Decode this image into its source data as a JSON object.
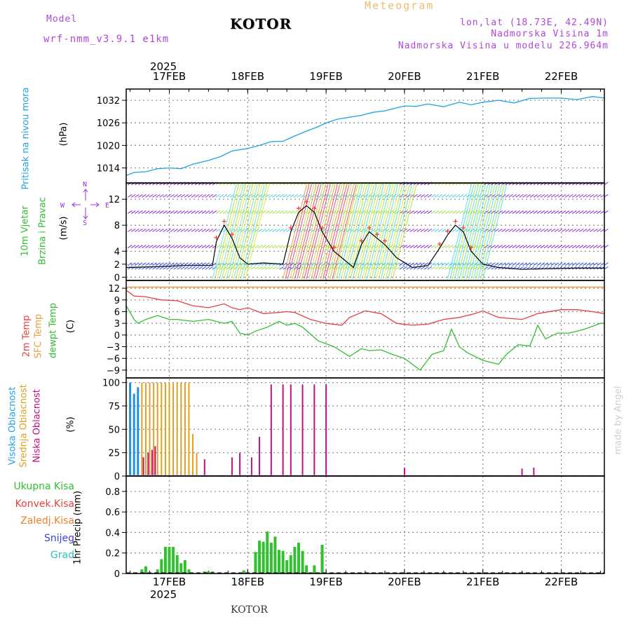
{
  "header": {
    "model_label": "Model",
    "model_value": "wrf-nmm_v3.9.1  e1km",
    "title": "KOTOR",
    "meteogram_label": "Meteogram",
    "coords": "lon,lat (18.73E, 42.49N)",
    "altitude": "Nadmorska Visina 1m",
    "model_altitude": "Nadmorska Visina u modelu 226.964m",
    "watermark": "made by Angel",
    "footer": "KOTOR"
  },
  "time_axis": {
    "year_top": "2025",
    "year_bottom": "2025",
    "day_labels": [
      "17FEB",
      "18FEB",
      "19FEB",
      "20FEB",
      "21FEB",
      "22FEB"
    ],
    "range_days": [
      -0.55,
      5.55
    ]
  },
  "colors": {
    "pressure": "#1ea3e6",
    "temp2m": "#e84040",
    "sfc_temp": "#e8a040",
    "dewpt": "#30c030",
    "high_cloud": "#2090e0",
    "mid_cloud": "#e0a020",
    "low_cloud": "#c01080",
    "precip": "#30c030",
    "wind_speed": "#000000",
    "gust": "#ff3030",
    "purple": "#a030e0"
  },
  "panels": {
    "pressure": {
      "label_a": "Pritisak na nivou mora",
      "label_b": "(hPa)",
      "ticks": [
        1014,
        1020,
        1026,
        1032
      ]
    },
    "wind": {
      "label_a": "10m Vjetar",
      "label_b": "Brzina i Pravac",
      "label_c": "(m/s)",
      "compass_n": "N",
      "compass_s": "S",
      "compass_w": "W",
      "compass_e": "E",
      "ticks": [
        0,
        2,
        4,
        8,
        12
      ]
    },
    "temp": {
      "label_a": "2m Temp",
      "label_b": "SFC Temp",
      "label_c": "dewpt Temp",
      "label_d": "(C)",
      "ticks": [
        -9,
        -6,
        -3,
        0,
        3,
        6,
        9,
        12
      ]
    },
    "cloud": {
      "label_a": "Visoka Oblacnost",
      "label_b": "Srednja Oblacnost",
      "label_c": "Niska Oblacnost",
      "label_d": "(%)",
      "ticks": [
        0,
        25,
        50,
        75,
        100
      ]
    },
    "precip": {
      "label_b": "1hr Precip (mm)",
      "ticks": [
        0,
        0.2,
        0.4,
        0.6,
        0.8
      ],
      "legend": [
        {
          "text": "Ukupna Kisa",
          "color": "#30c030"
        },
        {
          "text": "Konvek.Kisa",
          "color": "#e84040"
        },
        {
          "text": "Zaledj.Kisa",
          "color": "#f08030"
        },
        {
          "text": "Snijeg",
          "color": "#4040e0"
        },
        {
          "text": "Grad",
          "color": "#30c0c0"
        }
      ]
    }
  },
  "chart_data": [
    {
      "type": "line",
      "name": "pressure",
      "ylim": [
        1010,
        1035
      ],
      "x": [
        -0.55,
        -0.45,
        -0.3,
        -0.15,
        0.0,
        0.15,
        0.3,
        0.4,
        0.5,
        0.65,
        0.8,
        1.0,
        1.15,
        1.3,
        1.45,
        1.6,
        1.75,
        1.9,
        2.0,
        2.15,
        2.3,
        2.45,
        2.6,
        2.75,
        2.9,
        3.0,
        3.15,
        3.3,
        3.5,
        3.7,
        3.85,
        4.0,
        4.2,
        4.4,
        4.6,
        4.8,
        5.0,
        5.2,
        5.4,
        5.55
      ],
      "y": [
        1012,
        1012.8,
        1013.0,
        1013.8,
        1014.0,
        1013.8,
        1015,
        1015.5,
        1016,
        1017,
        1018.5,
        1019.2,
        1020,
        1021.0,
        1021.1,
        1022.5,
        1023.8,
        1025,
        1026,
        1027,
        1027.5,
        1028,
        1028.8,
        1029.2,
        1030,
        1030.5,
        1030.4,
        1031.0,
        1030.3,
        1031.5,
        1030.8,
        1031.5,
        1032,
        1031.3,
        1032.5,
        1032.6,
        1032.6,
        1032.2,
        1033.0,
        1032.6
      ]
    },
    {
      "type": "line",
      "name": "wind_speed",
      "ylim": [
        -0.5,
        14.5
      ],
      "x": [
        -0.55,
        -0.2,
        0.2,
        0.55,
        0.6,
        0.7,
        0.8,
        0.9,
        1.0,
        1.2,
        1.45,
        1.55,
        1.65,
        1.75,
        1.85,
        1.95,
        2.1,
        2.35,
        2.45,
        2.55,
        2.65,
        2.75,
        2.9,
        3.1,
        3.3,
        3.45,
        3.55,
        3.65,
        3.75,
        3.85,
        4.0,
        4.2,
        4.5,
        4.8,
        5.2,
        5.55
      ],
      "y": [
        1.5,
        1.6,
        1.8,
        1.8,
        5.5,
        8,
        6,
        3,
        2,
        2.2,
        2,
        7,
        10,
        11,
        10,
        7,
        4,
        1.5,
        5,
        7,
        6,
        5,
        3,
        1.5,
        1.8,
        4.5,
        6.5,
        8,
        7,
        4,
        2,
        1.5,
        1.2,
        1.3,
        1.4,
        1.4
      ]
    },
    {
      "type": "line",
      "name": "2m_temp",
      "ylim": [
        -11,
        14
      ],
      "x": [
        -0.55,
        -0.45,
        -0.3,
        -0.1,
        0.1,
        0.3,
        0.5,
        0.7,
        0.8,
        0.9,
        1.0,
        1.2,
        1.4,
        1.5,
        1.6,
        1.8,
        2.0,
        2.2,
        2.3,
        2.5,
        2.7,
        2.9,
        3.1,
        3.3,
        3.5,
        3.7,
        3.9,
        4.0,
        4.2,
        4.5,
        4.7,
        5.0,
        5.2,
        5.4,
        5.55
      ],
      "y": [
        11.5,
        10,
        9.8,
        9.0,
        8.8,
        7.5,
        7.0,
        8,
        7.0,
        6.5,
        7.0,
        5.5,
        5.8,
        6.0,
        5.8,
        4.0,
        3.0,
        2.5,
        4.5,
        6.2,
        5.5,
        3.0,
        2.5,
        2.8,
        4.0,
        4.5,
        5.5,
        6.2,
        4.5,
        4.0,
        5.5,
        6.5,
        6.5,
        6.0,
        5.5
      ]
    },
    {
      "type": "line",
      "name": "dewpt_temp",
      "ylim": [
        -11,
        14
      ],
      "x": [
        -0.55,
        -0.45,
        -0.4,
        -0.3,
        -0.15,
        0.0,
        0.1,
        0.3,
        0.5,
        0.7,
        0.8,
        0.9,
        1.0,
        1.1,
        1.25,
        1.4,
        1.5,
        1.6,
        1.7,
        1.9,
        2.1,
        2.3,
        2.45,
        2.55,
        2.7,
        2.85,
        3.0,
        3.2,
        3.35,
        3.5,
        3.6,
        3.7,
        3.8,
        4.0,
        4.2,
        4.3,
        4.45,
        4.6,
        4.7,
        4.8,
        4.95,
        5.1,
        5.3,
        5.5,
        5.55
      ],
      "y": [
        7.5,
        4,
        3.0,
        4.0,
        5.0,
        4.0,
        4.0,
        3.5,
        4.0,
        3.0,
        3.5,
        0.5,
        0.0,
        1.0,
        2.0,
        3.5,
        2.5,
        3.0,
        2.0,
        -1.5,
        -3.0,
        -5.5,
        -3.5,
        -4,
        -3.8,
        -5.0,
        -6.0,
        -9.0,
        -5.0,
        -4.0,
        1.5,
        -3.0,
        -4.5,
        -6.5,
        -7.5,
        -5.0,
        -2.5,
        -2.8,
        2.5,
        -1.0,
        0.5,
        0.5,
        1.5,
        3.0,
        3.0
      ]
    },
    {
      "type": "line",
      "name": "sfc_temp",
      "ylim": [
        -11,
        14
      ],
      "x": [
        -0.55,
        5.55
      ],
      "y": [
        12.3,
        12.3
      ]
    },
    {
      "type": "bar",
      "name": "high_cloud",
      "ylim": [
        0,
        105
      ],
      "x": [
        -0.5,
        -0.45,
        -0.4
      ],
      "values": [
        100,
        88,
        95
      ]
    },
    {
      "type": "bar",
      "name": "mid_cloud",
      "ylim": [
        0,
        105
      ],
      "x": [
        -0.35,
        -0.3,
        -0.25,
        -0.2,
        -0.15,
        -0.1,
        -0.05,
        0.0,
        0.05,
        0.1,
        0.15,
        0.2,
        0.25,
        0.3,
        0.35
      ],
      "values": [
        100,
        100,
        100,
        100,
        100,
        100,
        100,
        100,
        100,
        100,
        100,
        100,
        100,
        45,
        25
      ]
    },
    {
      "type": "bar",
      "name": "low_cloud",
      "ylim": [
        0,
        105
      ],
      "x": [
        -0.33,
        -0.27,
        -0.22,
        -0.18,
        0.45,
        0.8,
        0.9,
        1.05,
        1.15,
        1.3,
        1.45,
        1.55,
        1.7,
        1.85,
        2.0,
        3.0,
        4.5,
        4.65
      ],
      "values": [
        20,
        25,
        28,
        32,
        18,
        20,
        25,
        20,
        42,
        98,
        98,
        98,
        98,
        98,
        98,
        9,
        8,
        9
      ]
    },
    {
      "type": "bar",
      "name": "precip",
      "ylim": [
        0,
        0.95
      ],
      "x": [
        -0.35,
        -0.3,
        -0.15,
        -0.1,
        -0.05,
        0.0,
        0.05,
        0.1,
        0.15,
        0.2,
        0.25,
        0.45,
        0.5,
        0.55,
        0.95,
        1.1,
        1.15,
        1.2,
        1.25,
        1.3,
        1.35,
        1.4,
        1.45,
        1.5,
        1.55,
        1.6,
        1.65,
        1.7,
        1.75,
        1.85,
        1.95
      ],
      "values": [
        0.04,
        0.07,
        0.04,
        0.14,
        0.26,
        0.26,
        0.26,
        0.18,
        0.1,
        0.13,
        0.04,
        0.02,
        0.02,
        0.02,
        0.03,
        0.21,
        0.32,
        0.31,
        0.41,
        0.3,
        0.36,
        0.23,
        0.22,
        0.13,
        0.18,
        0.26,
        0.3,
        0.22,
        0.08,
        0.08,
        0.28
      ]
    }
  ]
}
